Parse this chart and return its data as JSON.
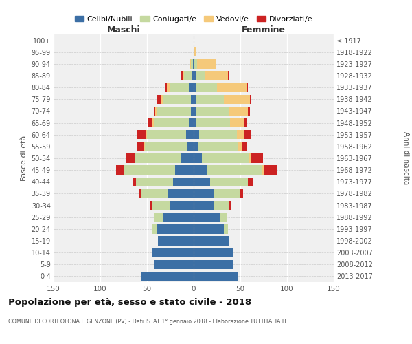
{
  "age_groups": [
    "0-4",
    "5-9",
    "10-14",
    "15-19",
    "20-24",
    "25-29",
    "30-34",
    "35-39",
    "40-44",
    "45-49",
    "50-54",
    "55-59",
    "60-64",
    "65-69",
    "70-74",
    "75-79",
    "80-84",
    "85-89",
    "90-94",
    "95-99",
    "100+"
  ],
  "birth_years": [
    "2013-2017",
    "2008-2012",
    "2003-2007",
    "1998-2002",
    "1993-1997",
    "1988-1992",
    "1983-1987",
    "1978-1982",
    "1973-1977",
    "1968-1972",
    "1963-1967",
    "1958-1962",
    "1953-1957",
    "1948-1952",
    "1943-1947",
    "1938-1942",
    "1933-1937",
    "1928-1932",
    "1923-1927",
    "1918-1922",
    "≤ 1917"
  ],
  "colors": {
    "celibe": "#3c6fa5",
    "coniugato": "#c5d9a0",
    "vedovo": "#f5c97a",
    "divorziato": "#cc2222"
  },
  "maschi": {
    "celibe": [
      56,
      42,
      44,
      38,
      40,
      32,
      26,
      28,
      22,
      20,
      13,
      7,
      8,
      5,
      3,
      3,
      5,
      2,
      1,
      0,
      0
    ],
    "coniugato": [
      0,
      0,
      0,
      0,
      4,
      10,
      18,
      28,
      40,
      55,
      50,
      45,
      42,
      38,
      36,
      30,
      20,
      8,
      2,
      0,
      0
    ],
    "vedovo": [
      0,
      0,
      0,
      0,
      0,
      0,
      0,
      0,
      0,
      0,
      0,
      1,
      1,
      1,
      2,
      2,
      4,
      2,
      1,
      0,
      0
    ],
    "divorziato": [
      0,
      0,
      0,
      0,
      0,
      0,
      2,
      3,
      3,
      8,
      9,
      7,
      9,
      5,
      2,
      4,
      1,
      1,
      0,
      0,
      0
    ]
  },
  "femmine": {
    "nubile": [
      48,
      42,
      42,
      38,
      32,
      28,
      22,
      22,
      18,
      15,
      9,
      5,
      6,
      3,
      2,
      2,
      3,
      2,
      0,
      0,
      0
    ],
    "coniugata": [
      0,
      0,
      0,
      0,
      5,
      8,
      16,
      28,
      40,
      58,
      50,
      42,
      40,
      36,
      36,
      30,
      22,
      10,
      4,
      1,
      0
    ],
    "vedova": [
      0,
      0,
      0,
      0,
      0,
      0,
      0,
      0,
      0,
      2,
      3,
      5,
      8,
      15,
      20,
      28,
      32,
      25,
      20,
      2,
      1
    ],
    "divorziata": [
      0,
      0,
      0,
      0,
      0,
      0,
      2,
      3,
      5,
      15,
      12,
      5,
      7,
      3,
      2,
      2,
      1,
      1,
      0,
      0,
      0
    ]
  },
  "xlim": 150,
  "title": "Popolazione per età, sesso e stato civile - 2018",
  "subtitle": "COMUNE DI CORTEOLONA E GENZONE (PV) - Dati ISTAT 1° gennaio 2018 - Elaborazione TUTTITALIA.IT",
  "ylabel_left": "Fasce di età",
  "ylabel_right": "Anni di nascita",
  "xlabel_maschi": "Maschi",
  "xlabel_femmine": "Femmine",
  "legend_labels": [
    "Celibi/Nubili",
    "Coniugati/e",
    "Vedovi/e",
    "Divorziati/e"
  ]
}
